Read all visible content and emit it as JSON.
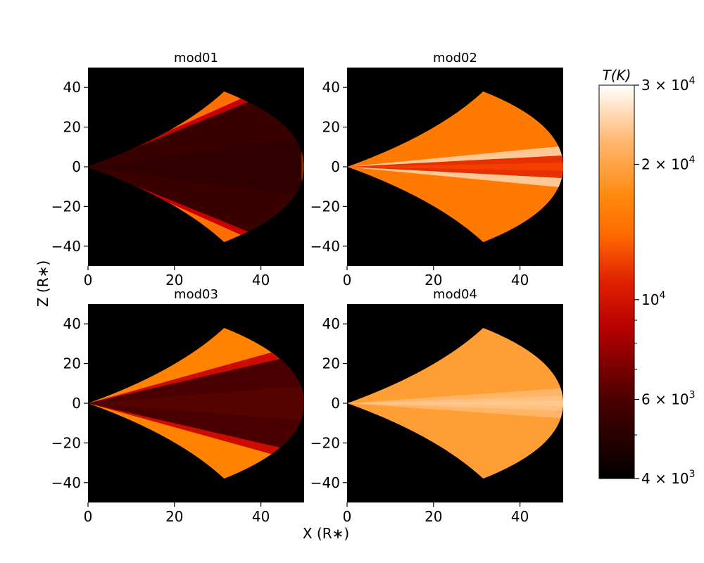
{
  "chart_data": {
    "type": "heatmap",
    "shared_xlabel": "X (R∗)",
    "shared_ylabel": "Z (R∗)",
    "xlim": [
      0,
      50
    ],
    "ylim": [
      -50,
      50
    ],
    "x_ticks": [
      0,
      20,
      40
    ],
    "y_ticks": [
      40,
      20,
      0,
      -20,
      -40
    ],
    "x_tick_labels": [
      "0",
      "20",
      "40"
    ],
    "y_tick_labels": [
      "40",
      "20",
      "0",
      "−20",
      "−40"
    ],
    "background_color": "#000000",
    "wedge": {
      "apex": [
        0,
        0
      ],
      "corner_x": 31.5,
      "corner_z": 38,
      "outer_x": 50
    },
    "panels": [
      {
        "title": "mod01",
        "fill": "#ff6e00",
        "wind_color": "#ff6e00",
        "disk_edge_color": "#c80000",
        "disk_color": "#3a0000",
        "disk_halfangle_deg": 22,
        "edge_width_deg": 2,
        "mid_color": "#2a0000"
      },
      {
        "title": "mod02",
        "fill": "#ff7a00",
        "wind_color": "#ff7a00",
        "disk_edge_color": "#ffc896",
        "disk_color": "#e63000",
        "disk_halfangle_deg": 3,
        "edge_width_deg": 2.5,
        "mid_color": "#ff4a00"
      },
      {
        "title": "mod03",
        "fill": "#ff8200",
        "wind_color": "#ff8200",
        "disk_edge_color": "#cc0c00",
        "disk_color": "#4a0000",
        "disk_halfangle_deg": 13,
        "edge_width_deg": 2.5,
        "mid_color": "#5c0500"
      },
      {
        "title": "mod04",
        "fill": "#ff9e35",
        "wind_color": "#ff9e35",
        "disk_edge_color": "#ffb565",
        "disk_color": "#ffc080",
        "disk_halfangle_deg": 2,
        "edge_width_deg": 2,
        "mid_color": "#ffcf98"
      }
    ],
    "colorbar": {
      "label": "T(K)",
      "scale": "log",
      "range": [
        4000,
        30000
      ],
      "major_ticks": [
        {
          "value": 30000,
          "mantissa": "3 × 10",
          "exp": "4"
        },
        {
          "value": 20000,
          "mantissa": "2 × 10",
          "exp": "4"
        },
        {
          "value": 10000,
          "mantissa": "10",
          "exp": "4"
        },
        {
          "value": 6000,
          "mantissa": "6 × 10",
          "exp": "3"
        },
        {
          "value": 4000,
          "mantissa": "4 × 10",
          "exp": "3"
        }
      ],
      "minor_ticks": [
        5000,
        7000,
        8000,
        9000
      ],
      "stops": [
        {
          "offset": 0.0,
          "color": "#000000"
        },
        {
          "offset": 0.2,
          "color": "#4a0000"
        },
        {
          "offset": 0.38,
          "color": "#b50000"
        },
        {
          "offset": 0.5,
          "color": "#e02000"
        },
        {
          "offset": 0.62,
          "color": "#ff6a00"
        },
        {
          "offset": 0.72,
          "color": "#ff8a10"
        },
        {
          "offset": 0.86,
          "color": "#ffb870"
        },
        {
          "offset": 1.0,
          "color": "#ffffff"
        }
      ]
    }
  }
}
